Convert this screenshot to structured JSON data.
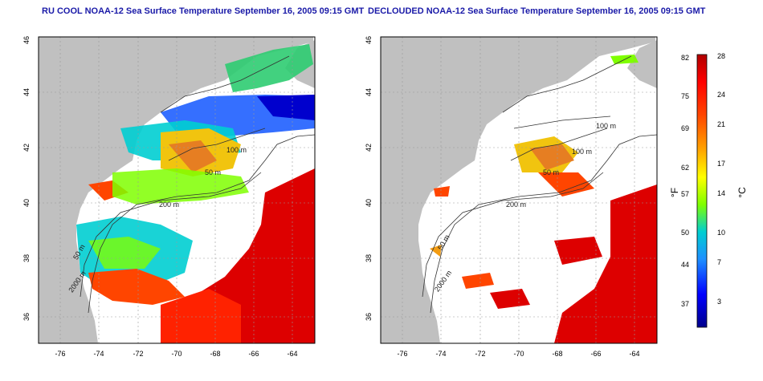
{
  "panels": [
    {
      "title": "RU COOL NOAA-12 Sea Surface Temperature September 16, 2005 09:15 GMT",
      "contours": [
        "100 m",
        "50 m",
        "200 m",
        "50 m",
        "2000 m"
      ]
    },
    {
      "title": "DECLOUDED NOAA-12 Sea Surface Temperature September 16, 2005 09:15 GMT",
      "contours": [
        "100 m",
        "100 m",
        "50 m",
        "200 m",
        "50 m",
        "2000 m"
      ]
    }
  ],
  "axes": {
    "lon_ticks": [
      "-76",
      "-74",
      "-72",
      "-70",
      "-68",
      "-66",
      "-64"
    ],
    "lat_ticks": [
      "36",
      "38",
      "40",
      "42",
      "44",
      "46"
    ]
  },
  "colorbar": {
    "f_ticks": [
      "82",
      "75",
      "69",
      "62",
      "57",
      "50",
      "44",
      "37"
    ],
    "c_ticks": [
      "28",
      "24",
      "21",
      "17",
      "14",
      "10",
      "7",
      "3"
    ],
    "f_label": "°F",
    "c_label": "°C",
    "colors": [
      "#00008b",
      "#0000ff",
      "#1e90ff",
      "#00ced1",
      "#7fff00",
      "#ffff00",
      "#ffa500",
      "#ff4500",
      "#ff0000",
      "#b00000"
    ]
  },
  "colors": {
    "land": "#c0c0c0",
    "ocean": "#ffffff",
    "title": "#1a1aa8"
  }
}
